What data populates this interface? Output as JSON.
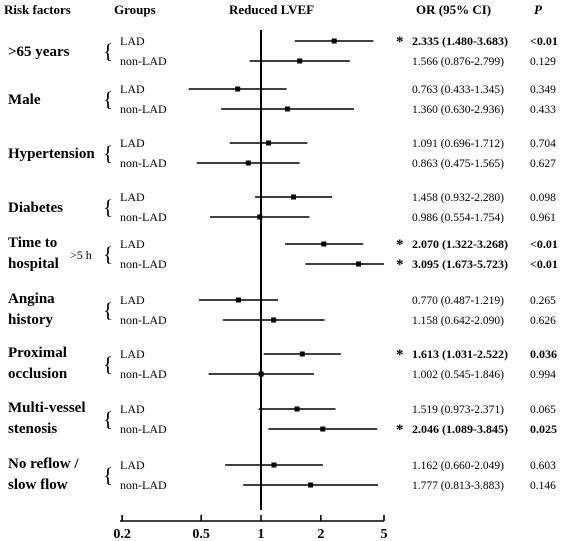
{
  "headers": {
    "risk_factors": "Risk factors",
    "groups": "Groups",
    "reduced_lvef": "Reduced LVEF",
    "or_ci": "OR (95% CI)",
    "p": "P"
  },
  "chart_data": {
    "type": "forest",
    "xaxis": {
      "scale": "log",
      "ticks": [
        0.2,
        0.5,
        1,
        2,
        5
      ],
      "tick_labels": [
        "0.2",
        "0.5",
        "1",
        "2",
        "5"
      ],
      "reference": 1,
      "xlim": [
        0.2,
        5
      ]
    },
    "factors": [
      {
        "label_lines": [
          ">65 years"
        ],
        "size_note": "",
        "rows": [
          {
            "group": "LAD",
            "or": 2.335,
            "lo": 1.48,
            "hi": 3.683,
            "or_text": "2.335 (1.480-3.683)",
            "p": "<0.01",
            "significant": true
          },
          {
            "group": "non-LAD",
            "or": 1.566,
            "lo": 0.876,
            "hi": 2.799,
            "or_text": "1.566 (0.876-2.799)",
            "p": "0.129",
            "significant": false
          }
        ]
      },
      {
        "label_lines": [
          "Male"
        ],
        "size_note": "",
        "rows": [
          {
            "group": "LAD",
            "or": 0.763,
            "lo": 0.433,
            "hi": 1.345,
            "or_text": "0.763 (0.433-1.345)",
            "p": "0.349",
            "significant": false
          },
          {
            "group": "non-LAD",
            "or": 1.36,
            "lo": 0.63,
            "hi": 2.936,
            "or_text": "1.360 (0.630-2.936)",
            "p": "0.433",
            "significant": false
          }
        ]
      },
      {
        "label_lines": [
          "Hypertension"
        ],
        "size_note": "",
        "rows": [
          {
            "group": "LAD",
            "or": 1.091,
            "lo": 0.696,
            "hi": 1.712,
            "or_text": "1.091 (0.696-1.712)",
            "p": "0.704",
            "significant": false
          },
          {
            "group": "non-LAD",
            "or": 0.863,
            "lo": 0.475,
            "hi": 1.565,
            "or_text": "0.863 (0.475-1.565)",
            "p": "0.627",
            "significant": false
          }
        ]
      },
      {
        "label_lines": [
          "Diabetes"
        ],
        "size_note": "",
        "rows": [
          {
            "group": "LAD",
            "or": 1.458,
            "lo": 0.932,
            "hi": 2.28,
            "or_text": "1.458 (0.932-2.280)",
            "p": "0.098",
            "significant": false
          },
          {
            "group": "non-LAD",
            "or": 0.986,
            "lo": 0.554,
            "hi": 1.754,
            "or_text": "0.986 (0.554-1.754)",
            "p": "0.961",
            "significant": false
          }
        ]
      },
      {
        "label_lines": [
          "Time to",
          "hospital"
        ],
        "size_note": ">5 h",
        "rows": [
          {
            "group": "LAD",
            "or": 2.07,
            "lo": 1.322,
            "hi": 3.268,
            "or_text": "2.070 (1.322-3.268)",
            "p": "<0.01",
            "significant": true
          },
          {
            "group": "non-LAD",
            "or": 3.095,
            "lo": 1.673,
            "hi": 5.723,
            "or_text": "3.095 (1.673-5.723)",
            "p": "<0.01",
            "significant": true
          }
        ]
      },
      {
        "label_lines": [
          "Angina",
          "history"
        ],
        "size_note": "",
        "rows": [
          {
            "group": "LAD",
            "or": 0.77,
            "lo": 0.487,
            "hi": 1.219,
            "or_text": "0.770 (0.487-1.219)",
            "p": "0.265",
            "significant": false
          },
          {
            "group": "non-LAD",
            "or": 1.158,
            "lo": 0.642,
            "hi": 2.09,
            "or_text": "1.158 (0.642-2.090)",
            "p": "0.626",
            "significant": false
          }
        ]
      },
      {
        "label_lines": [
          "Proximal",
          "occlusion"
        ],
        "size_note": "",
        "rows": [
          {
            "group": "LAD",
            "or": 1.613,
            "lo": 1.031,
            "hi": 2.522,
            "or_text": "1.613 (1.031-2.522)",
            "p": "0.036",
            "significant": true
          },
          {
            "group": "non-LAD",
            "or": 1.002,
            "lo": 0.545,
            "hi": 1.846,
            "or_text": "1.002 (0.545-1.846)",
            "p": "0.994",
            "significant": false
          }
        ]
      },
      {
        "label_lines": [
          "Multi-vessel",
          "stenosis"
        ],
        "size_note": "",
        "rows": [
          {
            "group": "LAD",
            "or": 1.519,
            "lo": 0.973,
            "hi": 2.371,
            "or_text": "1.519 (0.973-2.371)",
            "p": "0.065",
            "significant": false
          },
          {
            "group": "non-LAD",
            "or": 2.046,
            "lo": 1.089,
            "hi": 3.845,
            "or_text": "2.046 (1.089-3.845)",
            "p": "0.025",
            "significant": true
          }
        ]
      },
      {
        "label_lines": [
          "No reflow /",
          "slow flow"
        ],
        "size_note": "",
        "rows": [
          {
            "group": "LAD",
            "or": 1.162,
            "lo": 0.66,
            "hi": 2.049,
            "or_text": "1.162 (0.660-2.049)",
            "p": "0.603",
            "significant": false
          },
          {
            "group": "non-LAD",
            "or": 1.777,
            "lo": 0.813,
            "hi": 3.883,
            "or_text": "1.777 (0.813-3.883)",
            "p": "0.146",
            "significant": false
          }
        ]
      }
    ]
  }
}
